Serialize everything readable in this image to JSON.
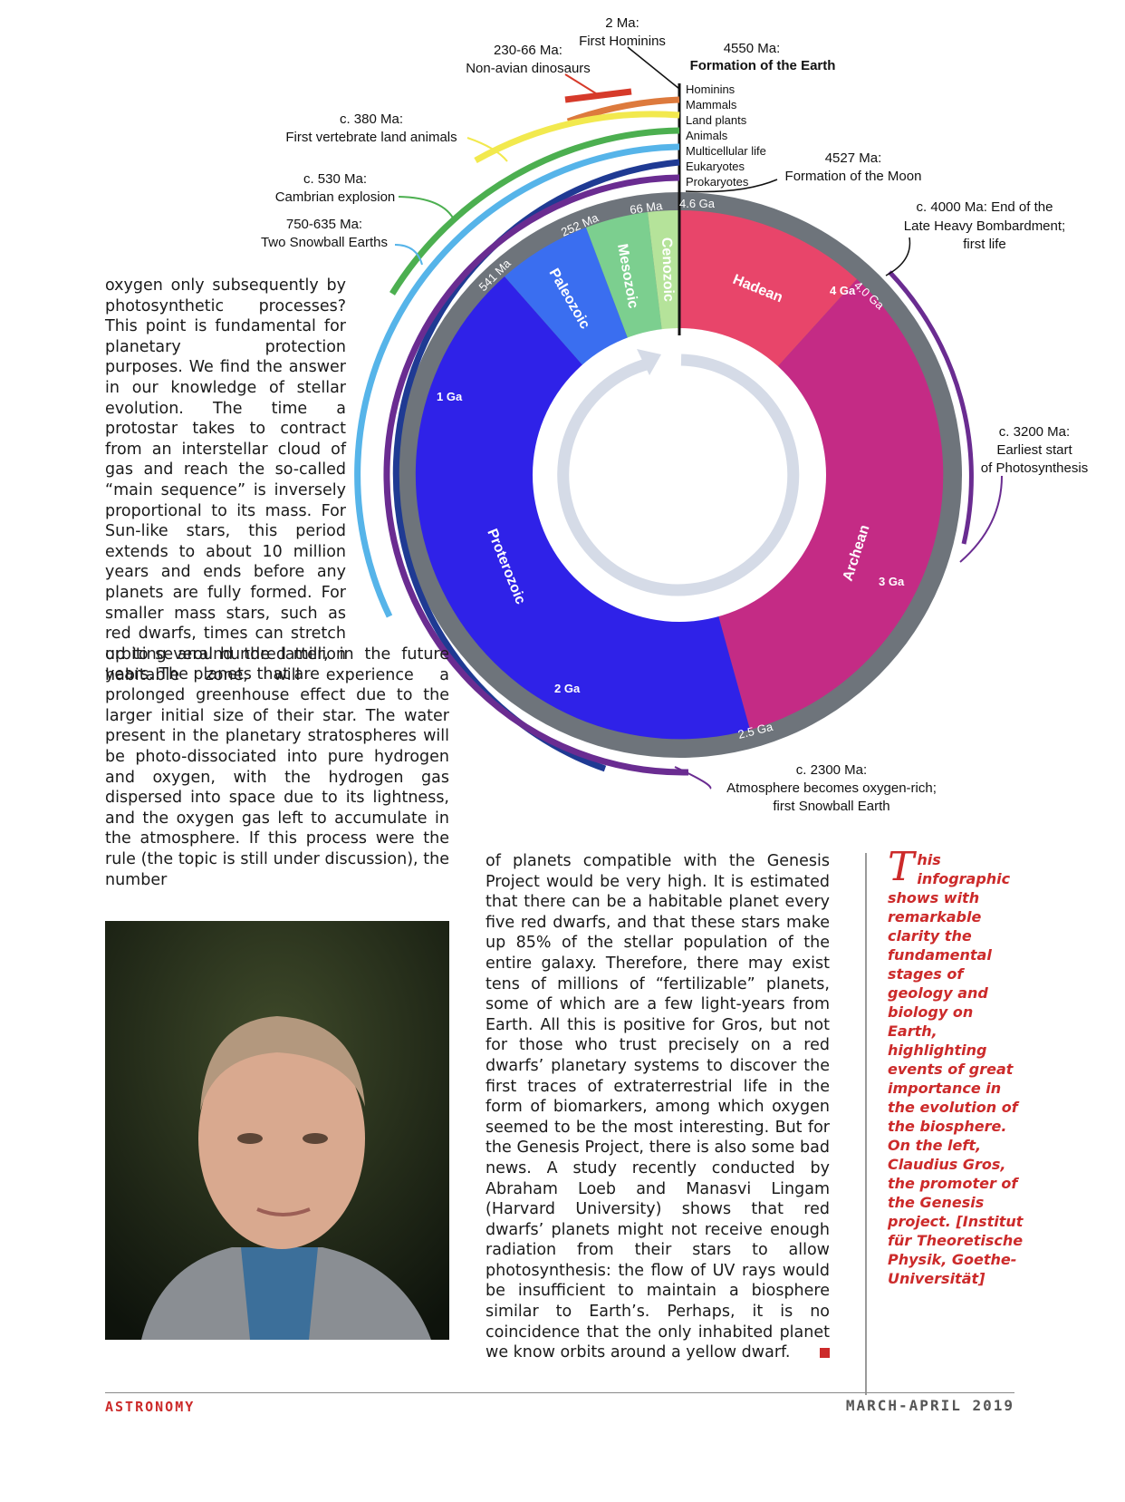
{
  "diagram": {
    "title_events": {
      "first_hominins_time": "2 Ma:",
      "first_hominins": "First Hominins",
      "dinosaurs_time": "230-66 Ma:",
      "dinosaurs": "Non-avian dinosaurs",
      "earth_time": "4550 Ma:",
      "earth": "Formation of the Earth",
      "moon_time": "4527 Ma:",
      "moon": "Formation of the Moon",
      "vertebrates_time": "c. 380 Ma:",
      "vertebrates": "First vertebrate land animals",
      "cambrian_time": "c. 530 Ma:",
      "cambrian": "Cambrian explosion",
      "snowball_time": "750-635 Ma:",
      "snowball": "Two Snowball Earths",
      "bombardment_1": "c. 4000 Ma: End of the",
      "bombardment_2": "Late Heavy Bombardment;",
      "bombardment_3": "first life",
      "photo_1": "c. 3200 Ma:",
      "photo_2": "Earliest start",
      "photo_3": "of Photosynthesis",
      "oxygen_1": "c. 2300 Ma:",
      "oxygen_2": "Atmosphere becomes oxygen-rich;",
      "oxygen_3": "first Snowball Earth"
    },
    "legend": [
      "Hominins",
      "Mammals",
      "Land plants",
      "Animals",
      "Multicellular life",
      "Eukaryotes",
      "Prokaryotes"
    ],
    "legend_colors": [
      "#d63a2a",
      "#dd7a3d",
      "#f2e94e",
      "#4caf50",
      "#56b4e9",
      "#1f3a93",
      "#6a2c91"
    ],
    "eras": {
      "hadean": "Hadean",
      "archean": "Archean",
      "proterozoic": "Proterozoic",
      "paleozoic": "Paleozoic",
      "mesozoic": "Mesozoic",
      "cenozoic": "Cenozoic"
    },
    "era_colors": {
      "hadean": "#e8456a",
      "archean": "#c42b85",
      "proterozoic": "#2f22e8",
      "paleozoic": "#3a6ef0",
      "mesozoic": "#7ccf8f",
      "cenozoic": "#b5e39a"
    },
    "ticks": {
      "t46": "4.6 Ga",
      "t40": "4.0 Ga",
      "t4": "4 Ga",
      "t3": "3 Ga",
      "t25": "2.5 Ga",
      "t2": "2 Ga",
      "t1": "1 Ga",
      "t541": "541 Ma",
      "t252": "252 Ma",
      "t66": "66 Ma"
    }
  },
  "article": {
    "col1a": "oxygen only subsequently by photosynthetic processes? This point is fundamental for planetary protection purposes. We find the answer in our knowledge of stellar evolution. The time a protostar takes to contract from an interstellar cloud of gas and reach the so-called “main sequence” is inversely proportional to its mass. For Sun-like stars, this period extends to about 10 million years and ends before any planets are fully formed. For smaller mass stars, such as red dwarfs, times can stretch up to several hundred million years. The planets that are",
    "col1b": "orbiting around the latter, in the future habitable zone, will experience a prolonged greenhouse effect due to the larger initial size of their star. The water present in the planetary stratospheres will be photo-dissociated into pure hydrogen and oxygen, with the hydrogen gas dispersed into space due to its lightness, and the oxygen gas left to accumulate in the atmosphere. If this process were the rule (the topic is still under discussion), the number",
    "col2": "of planets compatible with the Genesis Project would be very high. It is estimated that there can be a habitable planet every five red dwarfs, and that these stars make up 85% of the stellar population of the entire galaxy. Therefore, there may exist tens of millions of “fertilizable” planets, some of which are a few light-years from Earth. All this is positive for Gros, but not for those who trust precisely on a red dwarfs’ planetary systems to discover the first traces of extraterrestrial life in the form of biomarkers, among which oxygen seemed to be the most interesting. But for the Genesis Project, there is also some bad news. A study recently conducted by Abraham Loeb and Manasvi Lingam (Harvard University) shows that red dwarfs’ planets might not receive enough radiation from their stars to allow photosynthesis: the flow of UV rays would be insufficient to maintain a biosphere similar to Earth’s. Perhaps, it is no coincidence that the only inhabited planet we know orbits around a yellow dwarf."
  },
  "caption": {
    "dropcap": "T",
    "text": "his infographic shows with remarkable clarity the fundamental stages of geology and biology on Earth, highlighting events of great importance in the evolution of the biosphere. On the left, Claudius Gros, the promoter of the Genesis project. [Institut für Theoretische Physik, Goethe-Universität]"
  },
  "footer": {
    "logo": "ASTRONOMY",
    "issue": "MARCH-APRIL 2019"
  }
}
